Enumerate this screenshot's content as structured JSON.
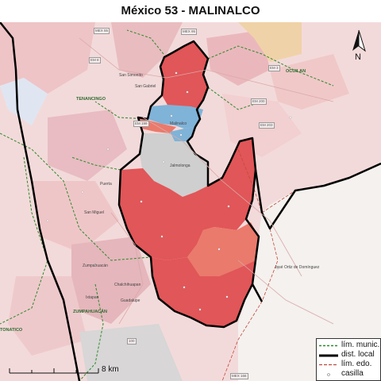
{
  "title": "México 53 - MALINALCO",
  "colors": {
    "district_red": "#e15658",
    "district_salmon": "#ea7a6c",
    "district_blue": "#7fb3d8",
    "district_gray": "#cfcfcf",
    "muni_line": "#2a8a2a",
    "district_line": "#000000",
    "state_line": "#c04a3a",
    "background_pink": "#f4dede"
  },
  "map_labels": {
    "tenancingo": "TENANCINGO",
    "ocuilan": "OCUILAN",
    "zumpahuacan": "ZUMPAHUACÁN",
    "tonatico": "TONATICO",
    "malinalco": "Malinalco",
    "san_simonito": "San Simonito",
    "san_gabriel": "San Gabriel",
    "jalmolonga": "Jalmolonga",
    "san_miguel": "San Miguel",
    "puerta": "Puerta",
    "zumpahuacan_town": "Zumpahuacán",
    "chalchihuapan": "Chalchihuapan",
    "jose_ortiz": "José Ortiz de Domínguez",
    "guadalupe": "Guadalupe",
    "ixtapan": "Ixtapan"
  },
  "road_badges": [
    "MEX 55",
    "EM 8",
    "EM 200",
    "EM 203",
    "EM 199",
    "EM 3",
    "MEX 166",
    "100",
    "MEX 95"
  ],
  "north_label": "N",
  "scale_label": "8 km",
  "legend": [
    {
      "label": "lím. munic.",
      "icon": "dashed-green-line"
    },
    {
      "label": "dist. local",
      "icon": "thick-black-line"
    },
    {
      "label": "lím. edo.",
      "icon": "dashed-red-line"
    },
    {
      "label": "casilla",
      "icon": "small-circle-marker"
    }
  ]
}
